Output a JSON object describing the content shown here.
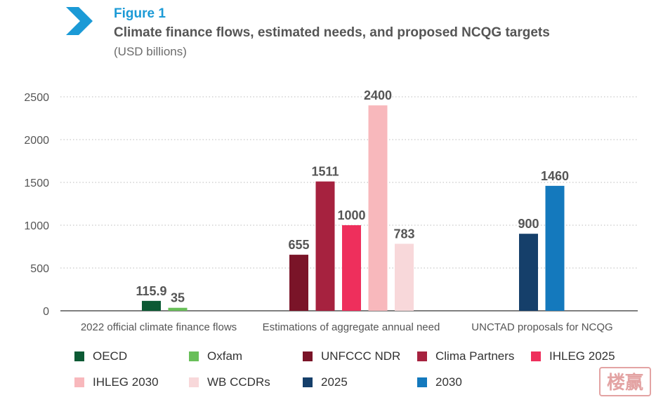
{
  "header": {
    "figure_label": "Figure 1",
    "title": "Climate finance flows, estimated needs, and proposed NCQG targets",
    "subtitle": "(USD billions)"
  },
  "colors": {
    "accent": "#1b9ad6",
    "axis": "#333333",
    "grid": "#bbbbbb"
  },
  "stamp_text": "楼赢",
  "chart_data": {
    "type": "bar",
    "title": "Climate finance flows, estimated needs, and proposed NCQG targets",
    "ylabel": "USD billions",
    "xlabel": "",
    "ylim": [
      0,
      2500
    ],
    "yticks": [
      0,
      500,
      1000,
      1500,
      2000,
      2500
    ],
    "grid": "horizontal-dotted",
    "legend_position": "bottom",
    "groups": [
      {
        "label": "2022 official climate finance flows",
        "bars": [
          {
            "series": "OECD",
            "value": 115.9,
            "label": "115.9"
          },
          {
            "series": "Oxfam",
            "value": 35,
            "label": "35"
          }
        ]
      },
      {
        "label": "Estimations of aggregate annual need",
        "bars": [
          {
            "series": "UNFCCC NDR",
            "value": 655,
            "label": "655"
          },
          {
            "series": "Clima Partners",
            "value": 1511,
            "label": "1511"
          },
          {
            "series": "IHLEG 2025",
            "value": 1000,
            "label": "1000"
          },
          {
            "series": "IHLEG 2030",
            "value": 2400,
            "label": "2400"
          },
          {
            "series": "WB CCDRs",
            "value": 783,
            "label": "783"
          }
        ]
      },
      {
        "label": "UNCTAD proposals for NCQG",
        "bars": [
          {
            "series": "2025",
            "value": 900,
            "label": "900"
          },
          {
            "series": "2030",
            "value": 1460,
            "label": "1460"
          }
        ]
      }
    ],
    "series": [
      {
        "name": "OECD",
        "color": "#0c5a34"
      },
      {
        "name": "Oxfam",
        "color": "#69bf59"
      },
      {
        "name": "UNFCCC NDR",
        "color": "#7a1428"
      },
      {
        "name": "Clima Partners",
        "color": "#a6223f"
      },
      {
        "name": "IHLEG 2025",
        "color": "#ee2f5c"
      },
      {
        "name": "IHLEG 2030",
        "color": "#f8b8bc"
      },
      {
        "name": "WB CCDRs",
        "color": "#f8d8da"
      },
      {
        "name": "2025",
        "color": "#153f6a"
      },
      {
        "name": "2030",
        "color": "#1479bd"
      }
    ]
  }
}
